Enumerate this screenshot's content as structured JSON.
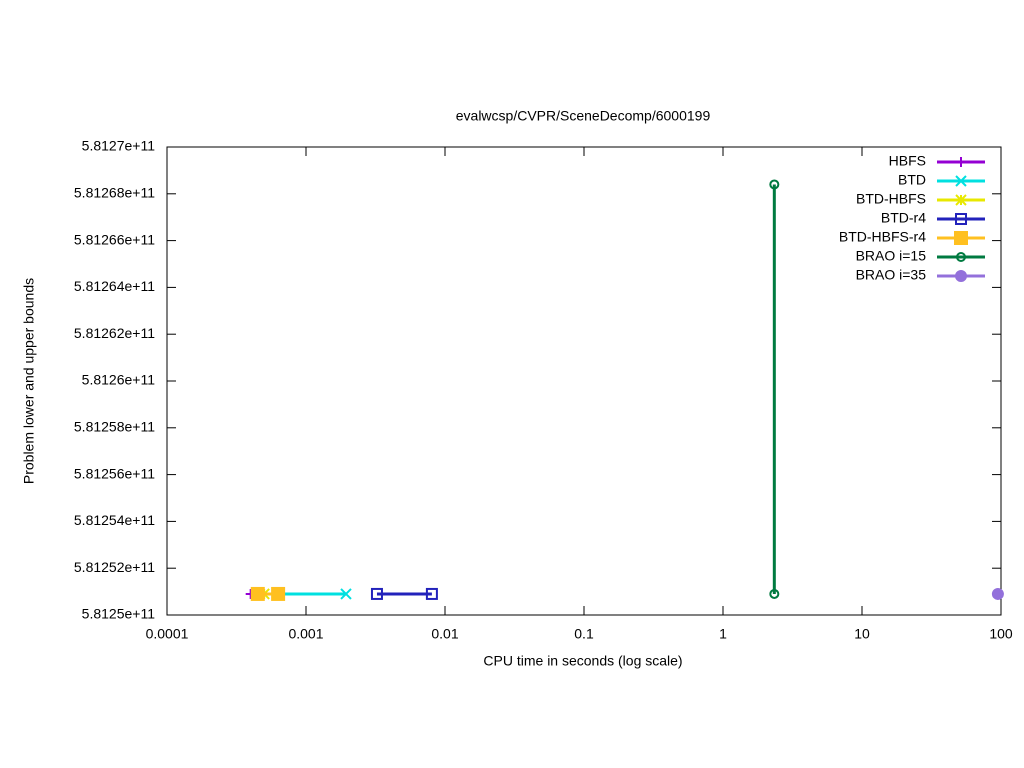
{
  "chart_data": {
    "type": "line",
    "title": "evalwcsp/CVPR/SceneDecomp/6000199",
    "xlabel": "CPU time in seconds (log scale)",
    "ylabel": "Problem lower and upper bounds",
    "xlog": true,
    "xlim": [
      0.0001,
      100
    ],
    "xticks": [
      0.0001,
      0.001,
      0.01,
      0.1,
      1,
      10,
      100
    ],
    "ylim": [
      581250000000,
      581270000000
    ],
    "yticks": [
      {
        "value": 581250000000,
        "label": "5.8125e+11"
      },
      {
        "value": 581252000000,
        "label": "5.81252e+11"
      },
      {
        "value": 581254000000,
        "label": "5.81254e+11"
      },
      {
        "value": 581256000000,
        "label": "5.81256e+11"
      },
      {
        "value": 581258000000,
        "label": "5.81258e+11"
      },
      {
        "value": 581260000000,
        "label": "5.8126e+11"
      },
      {
        "value": 581262000000,
        "label": "5.81262e+11"
      },
      {
        "value": 581264000000,
        "label": "5.81264e+11"
      },
      {
        "value": 581266000000,
        "label": "5.81266e+11"
      },
      {
        "value": 581268000000,
        "label": "5.81268e+11"
      },
      {
        "value": 581270000000,
        "label": "5.8127e+11"
      }
    ],
    "legend": "top-right",
    "series": [
      {
        "name": "HBFS",
        "color": "#9400d3",
        "marker": "plus",
        "x": [
          0.0004,
          0.00044
        ],
        "values": [
          581250900000,
          581250900000
        ]
      },
      {
        "name": "BTD",
        "color": "#00e0e0",
        "marker": "cross",
        "x": [
          0.00063,
          0.00194
        ],
        "values": [
          581250900000,
          581250900000
        ]
      },
      {
        "name": "BTD-HBFS",
        "color": "#e8e800",
        "marker": "star",
        "x": [
          0.00044,
          0.0005
        ],
        "values": [
          581250900000,
          581250900000
        ]
      },
      {
        "name": "BTD-r4",
        "color": "#2222bb",
        "marker": "box",
        "x": [
          0.00324,
          0.00805
        ],
        "values": [
          581250900000,
          581250900000
        ]
      },
      {
        "name": "BTD-HBFS-r4",
        "color": "#ffc020",
        "marker": "filled-box",
        "x": [
          0.00045,
          0.00063
        ],
        "values": [
          581250900000,
          581250900000
        ]
      },
      {
        "name": "BRAO i=15",
        "color": "#007a40",
        "marker": "circle",
        "x": [
          2.34,
          2.34
        ],
        "values": [
          581250900000,
          581268400000
        ]
      },
      {
        "name": "BRAO i=35",
        "color": "#9370db",
        "marker": "filled-circle",
        "x": [
          95
        ],
        "values": [
          581250900000
        ]
      }
    ]
  }
}
